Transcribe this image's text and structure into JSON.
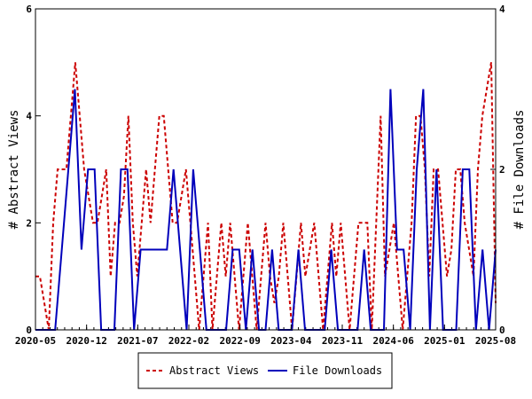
{
  "chart_data": {
    "type": "line",
    "x_tick_labels": [
      "2020-05",
      "2020-12",
      "2021-07",
      "2022-02",
      "2022-09",
      "2023-04",
      "2023-11",
      "2024-06",
      "2025-01",
      "2025-08"
    ],
    "y_left": {
      "label": "# Abstract Views",
      "ticks": [
        "0",
        "2",
        "4",
        "6"
      ],
      "range": [
        0,
        6
      ]
    },
    "y_right": {
      "label": "# File Downloads",
      "ticks": [
        "0",
        "2",
        "4"
      ],
      "range": [
        0,
        4
      ]
    },
    "x_range_months": "2020-05 to 2025-08",
    "legend": {
      "placement": "bottom",
      "entries": [
        "Abstract Views",
        "File Downloads"
      ]
    },
    "series": [
      {
        "name": "Abstract Views",
        "axis": "left",
        "color": "#cc0000",
        "style": "dashed",
        "values": [
          1,
          1,
          0.5,
          0,
          2,
          3,
          3,
          3,
          4,
          5,
          4,
          3,
          2.5,
          2,
          2,
          2.5,
          3,
          1,
          2,
          2,
          2.5,
          4,
          2,
          1,
          2,
          3,
          2,
          3,
          4,
          4,
          3,
          2,
          2,
          2.5,
          3,
          2,
          1,
          0,
          1,
          2,
          0,
          1,
          2,
          1,
          2,
          1,
          0,
          1,
          2,
          1,
          0,
          1,
          2,
          1,
          0.5,
          1,
          2,
          1,
          0,
          1,
          2,
          1,
          1.5,
          2,
          1,
          0,
          1,
          2,
          1,
          2,
          1,
          0,
          1,
          2,
          2,
          2,
          0,
          2,
          4,
          1,
          1.5,
          2,
          1,
          0,
          1,
          2,
          4,
          4,
          3,
          1,
          3,
          3,
          2,
          1,
          1.5,
          3,
          3,
          2,
          1.5,
          1,
          3,
          4,
          4.5,
          5,
          0.5
        ]
      },
      {
        "name": "File Downloads",
        "axis": "right",
        "color": "#0000bb",
        "style": "solid",
        "values": [
          0,
          0,
          0,
          0,
          1,
          2,
          3,
          1,
          2,
          2,
          0,
          0,
          0,
          2,
          2,
          0,
          1,
          1,
          1,
          1,
          1,
          2,
          1,
          0,
          2,
          1,
          0,
          0,
          0,
          0,
          1,
          1,
          0,
          1,
          0,
          0,
          1,
          0,
          0,
          0,
          1,
          0,
          0,
          0,
          0,
          1,
          0,
          0,
          0,
          0,
          1,
          0,
          0,
          0,
          3,
          1,
          1,
          0,
          2,
          3,
          0,
          2,
          0,
          0,
          0,
          2,
          2,
          0,
          1,
          0,
          1
        ]
      }
    ]
  }
}
